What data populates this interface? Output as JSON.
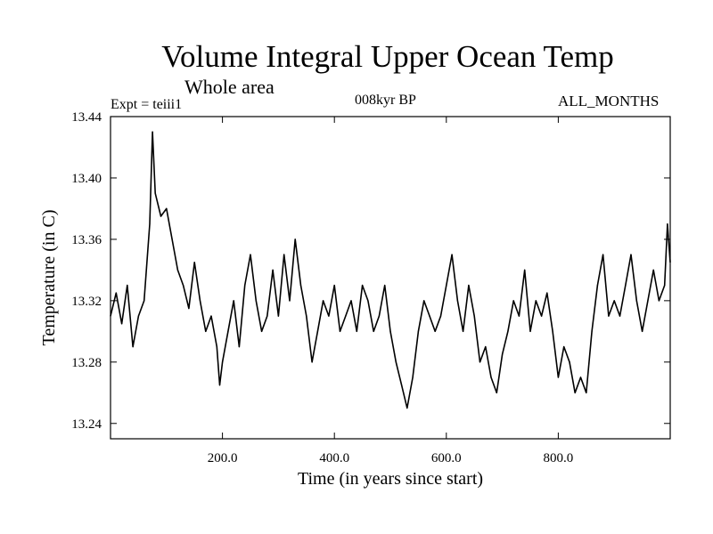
{
  "header": {
    "title": "Volume Integral Upper Ocean Temp",
    "subtitle": "Whole area",
    "experiment": "Expt = teiii1",
    "period": "008kyr BP",
    "months": "ALL_MONTHS"
  },
  "chart_data": {
    "type": "line",
    "title": "Volume Integral Upper Ocean Temp",
    "xlabel": "Time (in years since start)",
    "ylabel": "Temperature (in C)",
    "xlim": [
      0,
      1000
    ],
    "ylim": [
      13.23,
      13.44
    ],
    "xticks": [
      200,
      400,
      600,
      800
    ],
    "xtick_labels": [
      "200.0",
      "400.0",
      "600.0",
      "800.0"
    ],
    "yticks": [
      13.24,
      13.28,
      13.32,
      13.36,
      13.4,
      13.44
    ],
    "ytick_labels": [
      "13.24",
      "13.28",
      "13.32",
      "13.36",
      "13.40",
      "13.44"
    ],
    "grid": false,
    "series": [
      {
        "color": "#000000",
        "x": [
          0,
          10,
          20,
          30,
          40,
          50,
          60,
          70,
          75,
          80,
          90,
          100,
          110,
          120,
          130,
          140,
          150,
          160,
          170,
          180,
          190,
          195,
          200,
          210,
          220,
          230,
          240,
          250,
          260,
          270,
          280,
          290,
          300,
          310,
          320,
          330,
          340,
          350,
          360,
          370,
          380,
          390,
          400,
          410,
          420,
          430,
          440,
          450,
          460,
          470,
          480,
          490,
          500,
          510,
          520,
          530,
          540,
          550,
          560,
          570,
          580,
          590,
          600,
          610,
          620,
          630,
          640,
          650,
          660,
          670,
          680,
          690,
          700,
          710,
          720,
          730,
          740,
          750,
          760,
          770,
          780,
          790,
          800,
          810,
          820,
          830,
          840,
          850,
          860,
          870,
          880,
          890,
          900,
          910,
          920,
          930,
          940,
          950,
          960,
          970,
          980,
          990,
          995,
          1000
        ],
        "y": [
          13.31,
          13.325,
          13.305,
          13.33,
          13.29,
          13.31,
          13.32,
          13.37,
          13.43,
          13.39,
          13.375,
          13.38,
          13.36,
          13.34,
          13.33,
          13.315,
          13.345,
          13.32,
          13.3,
          13.31,
          13.29,
          13.265,
          13.28,
          13.3,
          13.32,
          13.29,
          13.33,
          13.35,
          13.32,
          13.3,
          13.31,
          13.34,
          13.31,
          13.35,
          13.32,
          13.36,
          13.33,
          13.31,
          13.28,
          13.3,
          13.32,
          13.31,
          13.33,
          13.3,
          13.31,
          13.32,
          13.3,
          13.33,
          13.32,
          13.3,
          13.31,
          13.33,
          13.3,
          13.28,
          13.265,
          13.25,
          13.27,
          13.3,
          13.32,
          13.31,
          13.3,
          13.31,
          13.33,
          13.35,
          13.32,
          13.3,
          13.33,
          13.31,
          13.28,
          13.29,
          13.27,
          13.26,
          13.285,
          13.3,
          13.32,
          13.31,
          13.34,
          13.3,
          13.32,
          13.31,
          13.325,
          13.3,
          13.27,
          13.29,
          13.28,
          13.26,
          13.27,
          13.26,
          13.3,
          13.33,
          13.35,
          13.31,
          13.32,
          13.31,
          13.33,
          13.35,
          13.32,
          13.3,
          13.32,
          13.34,
          13.32,
          13.33,
          13.37,
          13.345
        ]
      }
    ]
  }
}
